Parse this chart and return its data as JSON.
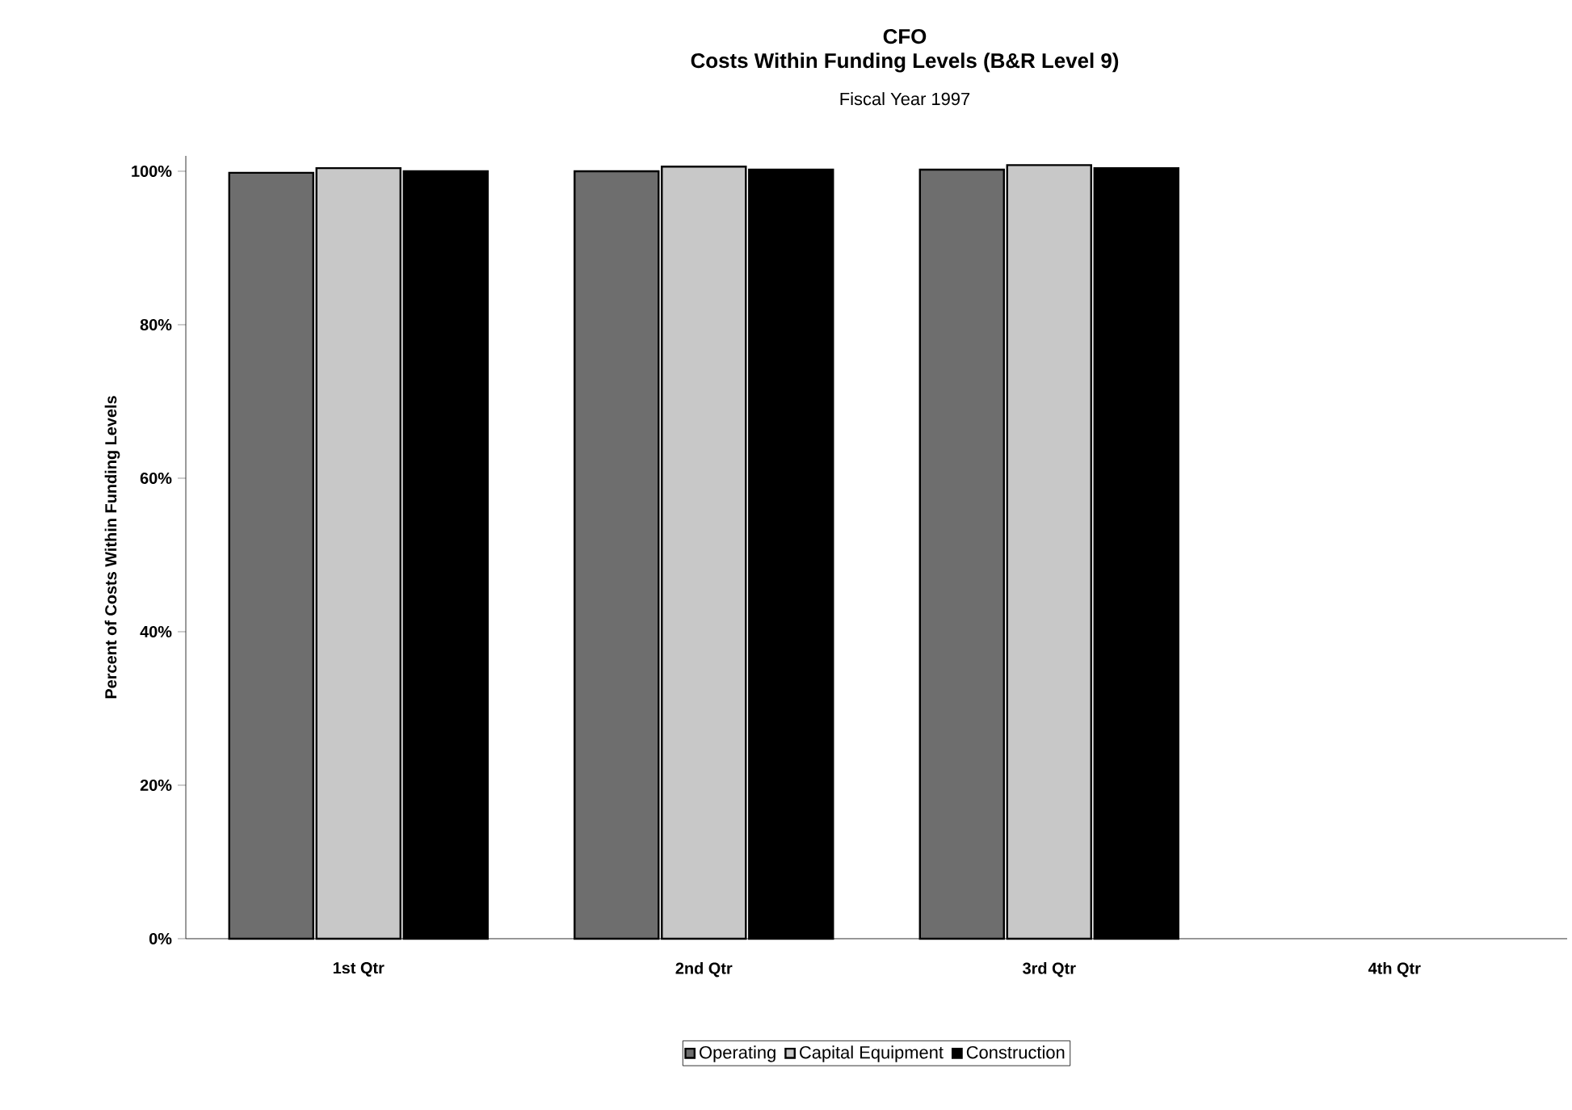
{
  "chart_data": {
    "type": "bar",
    "title": "CFO",
    "subtitle": "Costs Within Funding Levels (B&R Level 9)",
    "annotations": [
      "Fiscal Year 1997"
    ],
    "ylabel": "Percent of Costs Within Funding Levels",
    "categories": [
      "1st Qtr",
      "2nd Qtr",
      "3rd Qtr",
      "4th Qtr"
    ],
    "series": [
      {
        "name": "Operating",
        "color": "#6e6e6e",
        "values": [
          99.8,
          100,
          100.2,
          null
        ]
      },
      {
        "name": "Capital Equipment",
        "color": "#c8c8c8",
        "values": [
          100.4,
          100.6,
          100.8,
          null
        ]
      },
      {
        "name": "Construction",
        "color": "#000000",
        "values": [
          100,
          100.2,
          100.4,
          null
        ]
      }
    ],
    "ylim": [
      0,
      102
    ],
    "yticks": [
      {
        "value": 0,
        "label": "0%"
      },
      {
        "value": 20,
        "label": "20%"
      },
      {
        "value": 40,
        "label": "40%"
      },
      {
        "value": 60,
        "label": "60%"
      },
      {
        "value": 80,
        "label": "80%"
      },
      {
        "value": 100,
        "label": "100%"
      }
    ],
    "legend": "bottom",
    "grid": false
  }
}
